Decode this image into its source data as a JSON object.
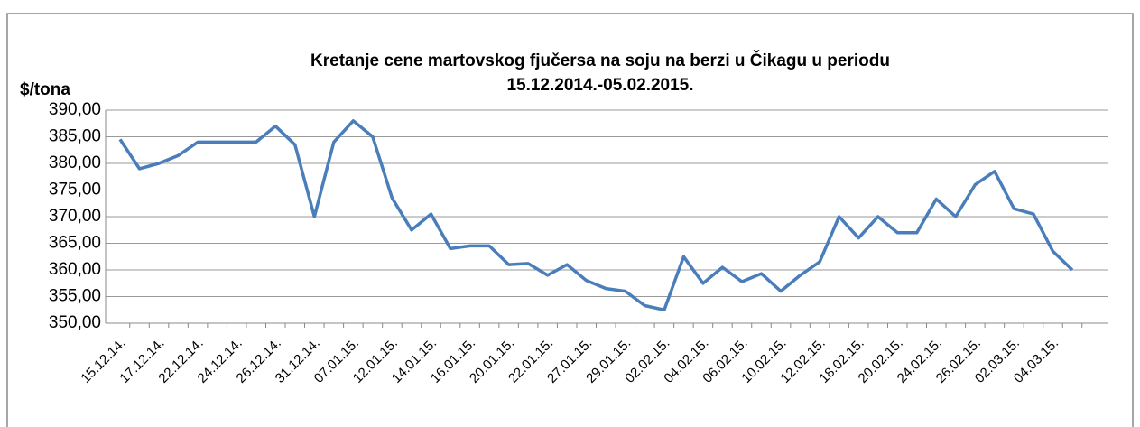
{
  "chart_data": {
    "type": "line",
    "title": [
      "Kretanje cene martovskog fjučersa na soju na berzi u Čikagu u periodu",
      "15.12.2014.-05.02.2015."
    ],
    "y_label": "$/tona",
    "categories": [
      "15.12.14.",
      null,
      "17.12.14.",
      null,
      "22.12.14.",
      null,
      "24.12.14.",
      null,
      "26.12.14.",
      null,
      "31.12.14.",
      null,
      "07.01.15.",
      null,
      "12.01.15.",
      null,
      "14.01.15.",
      null,
      "16.01.15.",
      null,
      "20.01.15.",
      null,
      "22.01.15.",
      null,
      "27.01.15.",
      null,
      "29.01.15.",
      null,
      "02.02.15.",
      null,
      "04.02.15.",
      null,
      "06.02.15.",
      null,
      "10.02.15.",
      null,
      "12.02.15.",
      null,
      "18.02.15.",
      null,
      "20.02.15.",
      null,
      "24.02.15.",
      null,
      "26.02.15.",
      null,
      "02.03.15.",
      null,
      "04.03.15.",
      null
    ],
    "values": [
      384.5,
      379,
      380,
      381.5,
      384,
      384,
      384,
      384,
      387,
      383.5,
      370,
      384,
      388,
      385,
      373.5,
      367.5,
      370.5,
      364,
      364.5,
      364.5,
      361,
      361.2,
      359,
      361,
      358,
      356.5,
      356,
      353.3,
      352.5,
      362.5,
      357.5,
      360.5,
      357.8,
      359.3,
      356,
      359,
      361.5,
      370,
      366,
      370,
      367,
      367,
      373.3,
      370,
      376,
      378.5,
      371.5,
      370.5,
      363.5,
      360
    ],
    "color": "#4a7ebb",
    "ylim": [
      350,
      390
    ],
    "yticks": [
      {
        "value": 350,
        "label": "350,00"
      },
      {
        "value": 355,
        "label": "355,00"
      },
      {
        "value": 360,
        "label": "360,00"
      },
      {
        "value": 365,
        "label": "365,00"
      },
      {
        "value": 370,
        "label": "370,00"
      },
      {
        "value": 375,
        "label": "375,00"
      },
      {
        "value": 380,
        "label": "380,00"
      },
      {
        "value": 385,
        "label": "385,00"
      },
      {
        "value": 390,
        "label": "390,00"
      }
    ],
    "grid": true
  }
}
